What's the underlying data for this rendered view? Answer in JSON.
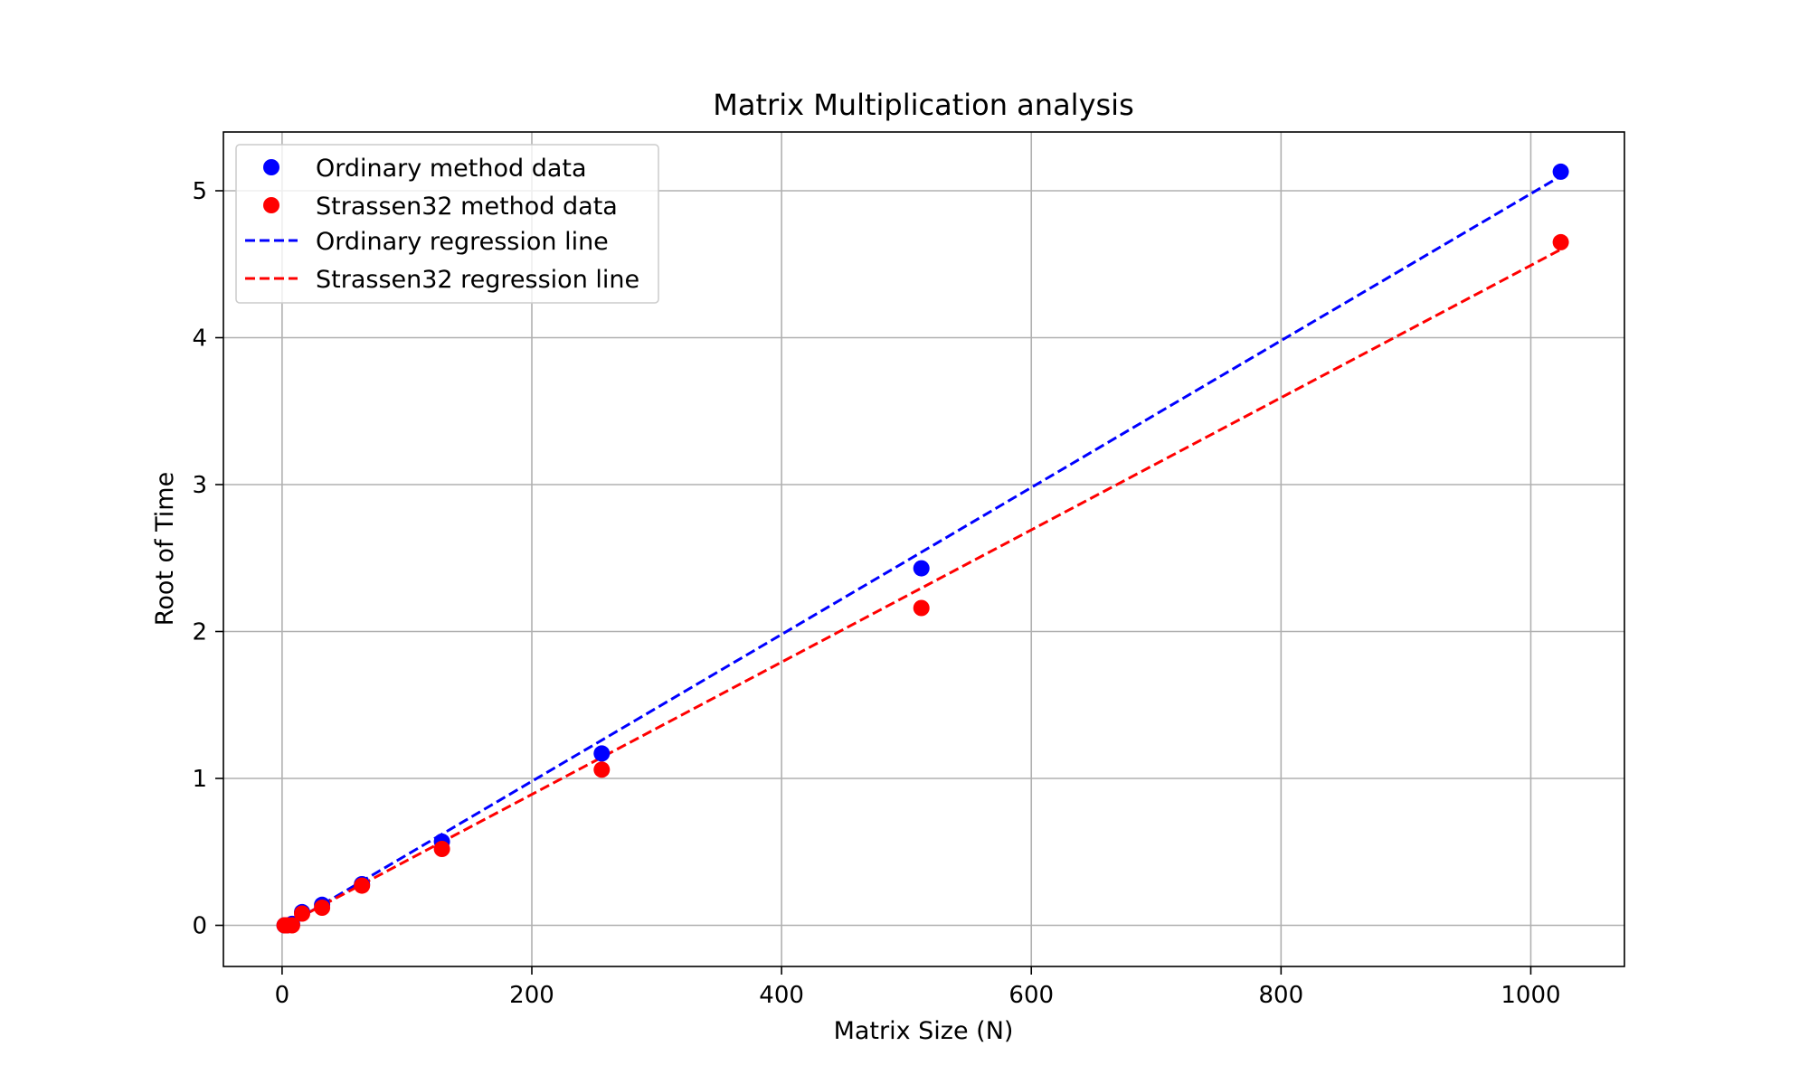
{
  "chart_data": {
    "type": "scatter",
    "title": "Matrix Multiplication analysis",
    "xlabel": "Matrix Size (N)",
    "ylabel": "Root of Time",
    "xlim": [
      -47,
      1075
    ],
    "ylim": [
      -0.28,
      5.4
    ],
    "xticks": [
      0,
      200,
      400,
      600,
      800,
      1000
    ],
    "yticks": [
      0,
      1,
      2,
      3,
      4,
      5
    ],
    "grid": true,
    "legend_position": "top-left",
    "series": [
      {
        "name": "Ordinary method data",
        "kind": "scatter",
        "color": "#0000ff",
        "x": [
          2,
          4,
          8,
          16,
          32,
          64,
          128,
          256,
          512,
          1024
        ],
        "y": [
          0.0,
          0.0,
          0.01,
          0.09,
          0.14,
          0.28,
          0.57,
          1.17,
          2.43,
          5.13
        ]
      },
      {
        "name": "Strassen32 method data",
        "kind": "scatter",
        "color": "#ff0000",
        "x": [
          2,
          4,
          8,
          16,
          32,
          64,
          128,
          256,
          512,
          1024
        ],
        "y": [
          0.0,
          0.0,
          0.0,
          0.08,
          0.12,
          0.27,
          0.52,
          1.06,
          2.16,
          4.65
        ]
      },
      {
        "name": "Ordinary regression line",
        "kind": "line",
        "dashed": true,
        "color": "#0000ff",
        "x": [
          2,
          1024
        ],
        "y": [
          -0.01,
          5.1
        ]
      },
      {
        "name": "Strassen32 regression line",
        "kind": "line",
        "dashed": true,
        "color": "#ff0000",
        "x": [
          2,
          1024
        ],
        "y": [
          0.0,
          4.6
        ]
      }
    ]
  }
}
